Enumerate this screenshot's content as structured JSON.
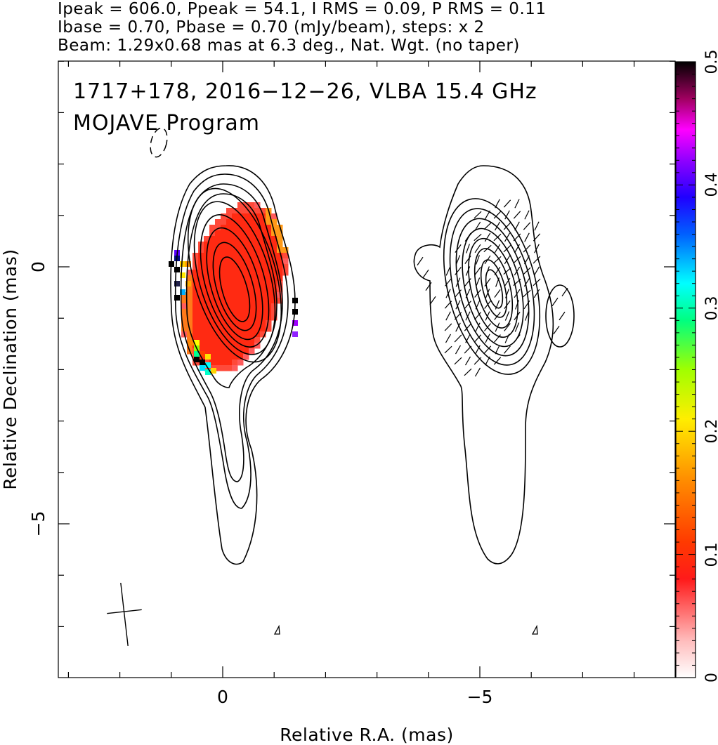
{
  "header": {
    "line1": "Ipeak = 606.0, Ppeak = 54.1, I RMS = 0.09, P RMS = 0.11",
    "line2": "Ibase = 0.70, Pbase = 0.70 (mJy/beam), steps: x 2",
    "line3": "Beam: 1.29x0.68 mas at 6.3 deg., Nat. Wgt. (no taper)"
  },
  "plot": {
    "title_line1": "1717+178, 2016−12−26, VLBA 15.4 GHz",
    "title_line2": "MOJAVE Program",
    "xlabel": "Relative R.A. (mas)",
    "ylabel": "Relative Declination (mas)"
  },
  "chart_data": {
    "type": "heatmap",
    "x_tick_labels": [
      "0",
      "−5"
    ],
    "y_tick_labels": [
      "0",
      "−5"
    ],
    "x_range_mas": [
      3.0,
      -8.9
    ],
    "y_range_mas": [
      4.0,
      -8.0
    ],
    "colorbar": {
      "range": [
        0,
        0.5
      ],
      "tick_labels": [
        "0",
        "0.1",
        "0.2",
        "0.3",
        "0.4",
        "0.5"
      ],
      "colors": [
        "#ffffff",
        "#ff0000",
        "#ff8c00",
        "#ffff00",
        "#00ff00",
        "#00ffff",
        "#0000ff",
        "#ff00ff",
        "#000000"
      ]
    },
    "panels": [
      {
        "name": "total intensity with fractional polarization",
        "ra_offset_mas": 0
      },
      {
        "name": "polarized intensity with EVPA ticks",
        "ra_offset_mas": -5
      }
    ],
    "contours": {
      "base_mJy_per_beam": 0.7,
      "step_factor": 2,
      "peak_mJy_per_beam": 606.0
    },
    "beam": {
      "major_mas": 1.29,
      "minor_mas": 0.68,
      "pa_deg": 6.3
    }
  }
}
